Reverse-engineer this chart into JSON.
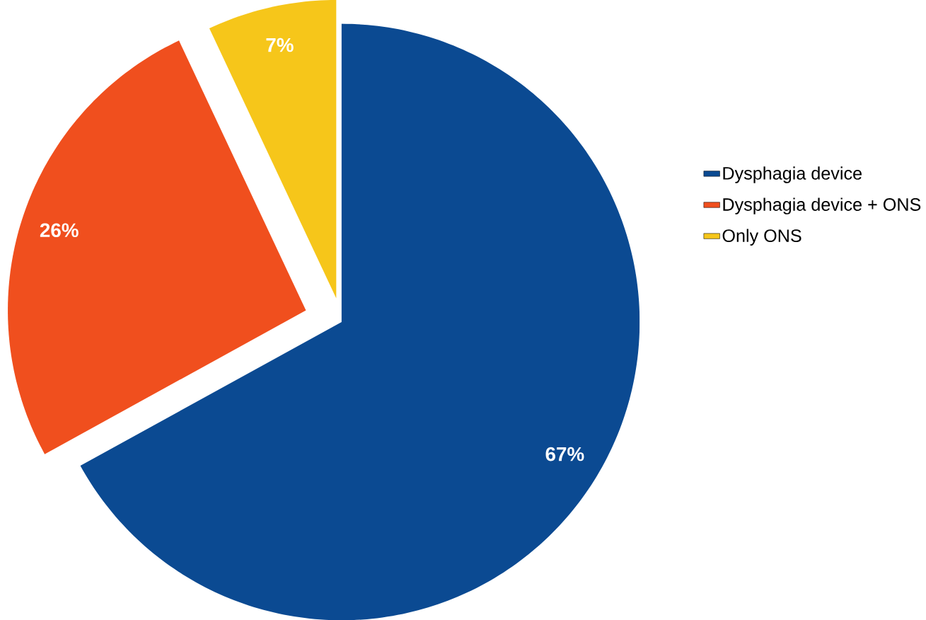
{
  "chart_data": {
    "type": "pie",
    "categories": [
      "Dysphagia device",
      "Dysphagia device + ONS",
      "Only ONS"
    ],
    "values": [
      67,
      26,
      7
    ],
    "colors": [
      "#0b4a92",
      "#f04f1e",
      "#f6c61a"
    ],
    "value_labels": [
      "67%",
      "26%",
      "7%"
    ],
    "legend": "right"
  }
}
